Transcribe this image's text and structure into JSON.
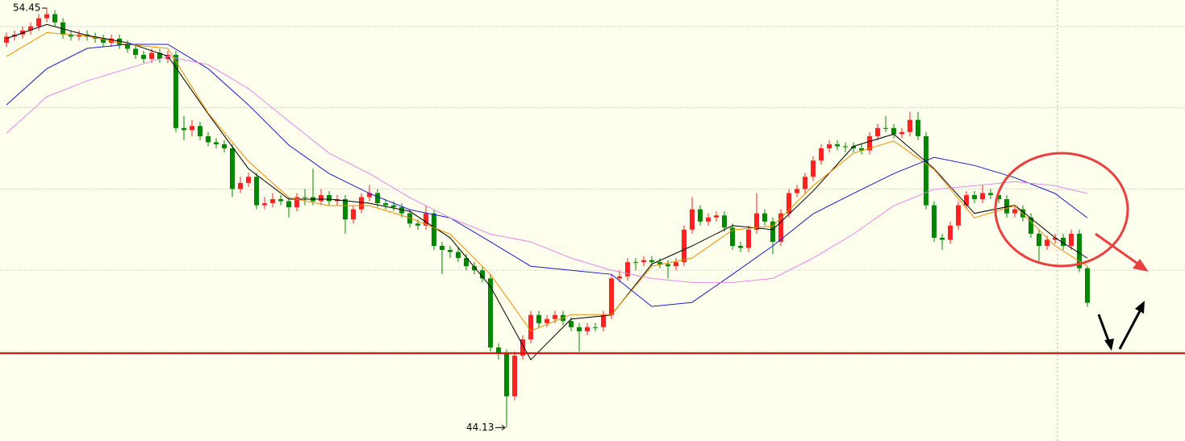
{
  "chart_data": {
    "type": "candlestick",
    "ylim": [
      43.8,
      54.65
    ],
    "gridlines": [
      46,
      48,
      50,
      52,
      54
    ],
    "up_color": "#ff2222",
    "down_color": "#008800",
    "open": [
      53.6,
      53.75,
      53.8,
      53.9,
      54.0,
      54.2,
      54.3,
      54.1,
      53.8,
      53.75,
      53.8,
      53.75,
      53.7,
      53.6,
      53.7,
      53.55,
      53.45,
      53.3,
      53.2,
      53.35,
      53.2,
      53.3,
      51.5,
      51.45,
      51.55,
      51.3,
      51.15,
      51.1,
      51.0,
      50.0,
      50.15,
      50.3,
      49.6,
      49.65,
      49.75,
      49.7,
      49.55,
      49.8,
      49.8,
      49.7,
      49.85,
      49.7,
      49.75,
      49.25,
      49.5,
      49.8,
      49.9,
      49.65,
      49.6,
      49.55,
      49.4,
      49.15,
      49.1,
      49.4,
      48.6,
      48.5,
      48.45,
      48.3,
      48.1,
      48.0,
      47.8,
      46.1,
      45.95,
      44.9,
      45.9,
      46.3,
      46.9,
      46.7,
      46.8,
      46.9,
      46.75,
      46.6,
      46.5,
      46.6,
      46.6,
      46.9,
      47.8,
      47.85,
      48.2,
      48.2,
      48.25,
      48.2,
      48.15,
      48.1,
      48.2,
      49.0,
      49.5,
      49.2,
      49.3,
      49.35,
      49.05,
      48.6,
      48.55,
      49.0,
      49.4,
      49.2,
      48.7,
      49.4,
      49.9,
      50.0,
      50.3,
      50.7,
      51.0,
      51.1,
      51.05,
      51.05,
      51.0,
      50.95,
      51.3,
      51.5,
      51.5,
      51.35,
      51.4,
      51.7,
      51.3,
      49.6,
      48.8,
      48.75,
      49.1,
      49.6,
      49.85,
      49.75,
      49.9,
      49.85,
      49.75,
      49.4,
      49.5,
      49.3,
      48.9,
      48.6,
      48.75,
      48.8,
      48.6,
      48.9,
      48.05
    ],
    "high": [
      53.85,
      53.9,
      54.0,
      54.1,
      54.3,
      54.45,
      54.4,
      54.2,
      53.9,
      53.9,
      53.9,
      53.85,
      53.8,
      53.8,
      53.8,
      53.65,
      53.55,
      53.4,
      53.45,
      53.45,
      53.4,
      53.4,
      51.8,
      51.7,
      51.65,
      51.4,
      51.25,
      51.2,
      51.1,
      50.3,
      50.4,
      50.4,
      49.8,
      49.9,
      49.85,
      49.8,
      49.9,
      50.0,
      50.5,
      50.0,
      49.95,
      49.85,
      49.85,
      49.6,
      49.9,
      50.1,
      50.0,
      49.75,
      49.7,
      49.65,
      49.5,
      49.25,
      49.6,
      49.5,
      48.7,
      48.6,
      48.55,
      48.4,
      48.2,
      48.1,
      47.9,
      46.2,
      46.05,
      46.0,
      46.4,
      47.0,
      47.0,
      46.9,
      47.0,
      47.0,
      46.85,
      46.7,
      46.7,
      46.7,
      47.0,
      47.9,
      48.0,
      48.3,
      48.3,
      48.35,
      48.35,
      48.3,
      48.25,
      48.3,
      49.1,
      49.8,
      49.6,
      49.4,
      49.45,
      49.45,
      49.15,
      48.7,
      49.1,
      49.9,
      49.5,
      49.3,
      49.5,
      50.0,
      50.1,
      50.4,
      50.8,
      51.1,
      51.2,
      51.2,
      51.15,
      51.15,
      51.1,
      51.4,
      51.6,
      51.8,
      51.6,
      51.5,
      51.9,
      51.9,
      51.4,
      49.7,
      48.9,
      49.2,
      49.7,
      49.95,
      49.95,
      50.1,
      50.0,
      49.95,
      49.85,
      49.6,
      49.6,
      49.4,
      49.0,
      48.85,
      48.9,
      48.9,
      49.0,
      49.0,
      48.1
    ],
    "low": [
      53.5,
      53.65,
      53.7,
      53.8,
      53.9,
      54.1,
      54.0,
      53.7,
      53.65,
      53.65,
      53.65,
      53.6,
      53.5,
      53.5,
      53.45,
      53.35,
      53.2,
      53.1,
      53.1,
      53.1,
      53.1,
      51.4,
      51.2,
      51.3,
      51.2,
      51.05,
      51.0,
      50.9,
      49.8,
      49.9,
      50.05,
      49.5,
      49.5,
      49.55,
      49.6,
      49.3,
      49.45,
      49.6,
      49.6,
      49.6,
      49.6,
      49.6,
      48.9,
      49.15,
      49.4,
      49.7,
      49.55,
      49.5,
      49.45,
      49.3,
      49.05,
      49.0,
      49.0,
      48.5,
      47.9,
      48.3,
      48.2,
      48.0,
      47.9,
      47.7,
      46.0,
      45.8,
      44.13,
      44.8,
      45.8,
      46.2,
      46.6,
      46.6,
      46.7,
      46.65,
      46.5,
      46.0,
      46.4,
      46.5,
      46.5,
      46.8,
      47.7,
      47.75,
      48.0,
      48.1,
      48.1,
      48.05,
      47.8,
      48.0,
      48.1,
      48.9,
      49.1,
      49.1,
      49.2,
      48.95,
      48.5,
      48.45,
      48.45,
      48.9,
      49.1,
      48.4,
      48.6,
      49.3,
      49.8,
      49.9,
      50.2,
      50.6,
      50.9,
      50.95,
      50.9,
      50.9,
      50.85,
      50.85,
      51.2,
      51.4,
      51.25,
      51.25,
      51.3,
      51.2,
      49.5,
      48.7,
      48.5,
      48.65,
      49.0,
      49.5,
      49.65,
      49.65,
      49.75,
      49.65,
      49.3,
      49.3,
      49.2,
      48.8,
      48.2,
      48.5,
      48.65,
      48.5,
      48.5,
      47.95,
      47.1
    ],
    "close": [
      53.75,
      53.8,
      53.9,
      54.0,
      54.2,
      54.3,
      54.1,
      53.8,
      53.75,
      53.8,
      53.75,
      53.7,
      53.6,
      53.7,
      53.55,
      53.45,
      53.3,
      53.2,
      53.35,
      53.2,
      53.3,
      51.5,
      51.45,
      51.55,
      51.3,
      51.15,
      51.1,
      51.0,
      50.0,
      50.15,
      50.3,
      49.6,
      49.65,
      49.75,
      49.7,
      49.55,
      49.8,
      49.8,
      49.7,
      49.85,
      49.7,
      49.75,
      49.25,
      49.5,
      49.8,
      49.9,
      49.65,
      49.6,
      49.55,
      49.4,
      49.15,
      49.1,
      49.4,
      48.6,
      48.5,
      48.45,
      48.3,
      48.1,
      48.0,
      47.8,
      46.1,
      45.95,
      44.9,
      45.9,
      46.3,
      46.9,
      46.7,
      46.8,
      46.9,
      46.75,
      46.6,
      46.5,
      46.6,
      46.6,
      46.9,
      47.8,
      47.85,
      48.2,
      48.2,
      48.25,
      48.2,
      48.15,
      48.1,
      48.2,
      49.0,
      49.5,
      49.2,
      49.3,
      49.35,
      49.05,
      48.6,
      48.55,
      49.0,
      49.4,
      49.2,
      48.7,
      49.4,
      49.9,
      50.0,
      50.3,
      50.7,
      51.0,
      51.1,
      51.05,
      51.05,
      51.0,
      50.95,
      51.3,
      51.5,
      51.5,
      51.35,
      51.4,
      51.7,
      51.3,
      49.6,
      48.8,
      48.75,
      49.1,
      49.6,
      49.85,
      49.75,
      49.9,
      49.85,
      49.75,
      49.4,
      49.5,
      49.3,
      48.9,
      48.6,
      48.75,
      48.8,
      48.6,
      48.9,
      48.05,
      47.2
    ],
    "ma_x": [
      0,
      5,
      10,
      15,
      20,
      25,
      30,
      35,
      40,
      45,
      50,
      55,
      60,
      65,
      70,
      75,
      80,
      85,
      90,
      95,
      100,
      105,
      110,
      115,
      120,
      125,
      130,
      134
    ],
    "moving_averages": [
      {
        "color": "#000000",
        "values": [
          53.7,
          54.05,
          53.78,
          53.6,
          53.27,
          51.85,
          50.5,
          49.75,
          49.75,
          49.65,
          49.45,
          48.8,
          47.6,
          45.8,
          46.8,
          46.9,
          48.15,
          48.6,
          49.1,
          49.0,
          49.95,
          51.05,
          51.35,
          50.5,
          49.4,
          49.6,
          48.8,
          48.3
        ]
      },
      {
        "color": "#f08c00",
        "values": [
          53.26,
          53.85,
          53.76,
          53.56,
          53.46,
          51.87,
          50.68,
          49.79,
          49.59,
          49.59,
          49.29,
          48.89,
          47.9,
          46.51,
          46.91,
          46.91,
          48.1,
          48.3,
          48.99,
          49.09,
          50.08,
          50.88,
          51.18,
          50.48,
          49.29,
          49.59,
          48.6,
          48.1
        ]
      },
      {
        "color": "#1a1acc",
        "values": [
          52.07,
          52.96,
          53.46,
          53.56,
          53.56,
          52.96,
          52.07,
          51.08,
          50.38,
          49.89,
          49.49,
          49.29,
          48.7,
          48.1,
          48.0,
          47.9,
          47.11,
          47.21,
          47.9,
          48.6,
          49.39,
          49.89,
          50.38,
          50.78,
          50.58,
          50.28,
          49.89,
          49.29
        ]
      },
      {
        "color": "#e08ae8",
        "values": [
          51.37,
          52.27,
          52.66,
          52.96,
          53.26,
          53.06,
          52.47,
          51.67,
          50.88,
          50.38,
          49.79,
          49.29,
          48.89,
          48.7,
          48.3,
          48.0,
          47.8,
          47.7,
          47.7,
          47.8,
          48.3,
          48.89,
          49.59,
          49.99,
          50.08,
          50.18,
          50.08,
          49.89
        ]
      }
    ],
    "support_level": 45.96,
    "support_color": "#ee0000",
    "annotations": {
      "high": 54.45,
      "low": 44.13
    }
  }
}
